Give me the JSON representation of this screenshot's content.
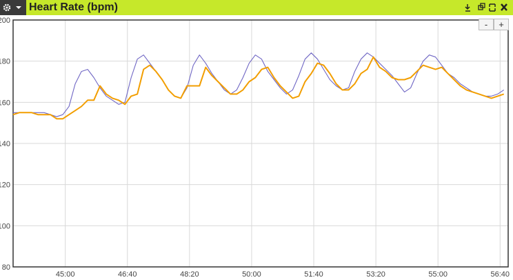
{
  "chart_data": {
    "type": "line",
    "title": "Heart Rate (bpm)",
    "x": [
      2616,
      2626,
      2636,
      2646,
      2656,
      2666,
      2676,
      2686,
      2696,
      2706,
      2716,
      2726,
      2736,
      2746,
      2756,
      2766,
      2776,
      2786,
      2796,
      2806,
      2816,
      2826,
      2836,
      2846,
      2856,
      2866,
      2876,
      2886,
      2896,
      2906,
      2916,
      2926,
      2936,
      2946,
      2956,
      2966,
      2976,
      2986,
      2996,
      3006,
      3016,
      3026,
      3036,
      3046,
      3056,
      3066,
      3076,
      3086,
      3096,
      3106,
      3116,
      3126,
      3136,
      3146,
      3156,
      3166,
      3176,
      3186,
      3196,
      3206,
      3216,
      3226,
      3236,
      3246,
      3256,
      3266,
      3276,
      3286,
      3296,
      3306,
      3316,
      3326,
      3336,
      3346,
      3356,
      3366,
      3376,
      3386,
      3396,
      3406
    ],
    "series": [
      {
        "color": "#6f66c4",
        "values": [
          155,
          155,
          155,
          155,
          155,
          155,
          154,
          153,
          154,
          158,
          169,
          175,
          176,
          172,
          167,
          163,
          161,
          159,
          160,
          172,
          181,
          183,
          179,
          175,
          171,
          166,
          163,
          162,
          167,
          178,
          183,
          179,
          174,
          170,
          166,
          164,
          166,
          172,
          179,
          183,
          181,
          175,
          171,
          167,
          164,
          166,
          173,
          181,
          184,
          181,
          176,
          171,
          168,
          166,
          167,
          175,
          181,
          184,
          182,
          179,
          176,
          173,
          169,
          165,
          167,
          174,
          180,
          183,
          182,
          178,
          174,
          172,
          169,
          167,
          165,
          164,
          163,
          163,
          164,
          166
        ]
      },
      {
        "color": "#f29e00",
        "values": [
          154,
          155,
          155,
          155,
          154,
          154,
          154,
          152,
          152,
          154,
          156,
          158,
          161,
          161,
          168,
          164,
          162,
          161,
          159,
          163,
          164,
          176,
          178,
          175,
          171,
          166,
          163,
          162,
          168,
          168,
          168,
          177,
          173,
          170,
          167,
          164,
          164,
          166,
          170,
          172,
          176,
          177,
          172,
          168,
          165,
          162,
          163,
          170,
          174,
          179,
          178,
          174,
          169,
          166,
          166,
          169,
          174,
          176,
          182,
          177,
          175,
          172,
          171,
          171,
          172,
          175,
          178,
          177,
          176,
          177,
          174,
          171,
          168,
          166,
          165,
          164,
          163,
          162,
          163,
          164
        ]
      }
    ],
    "xlim": [
      2616,
      3413
    ],
    "ylim": [
      80,
      200
    ],
    "xticks": [
      {
        "value": 2700,
        "label": "45:00"
      },
      {
        "value": 2800,
        "label": "46:40"
      },
      {
        "value": 2900,
        "label": "48:20"
      },
      {
        "value": 3000,
        "label": "50:00"
      },
      {
        "value": 3100,
        "label": "51:40"
      },
      {
        "value": 3200,
        "label": "53:20"
      },
      {
        "value": 3300,
        "label": "55:00"
      },
      {
        "value": 3400,
        "label": "56:40"
      }
    ],
    "yticks": [
      80,
      100,
      120,
      140,
      160,
      180,
      200
    ],
    "grid": true
  },
  "zoom_buttons": [
    "-",
    "+"
  ]
}
